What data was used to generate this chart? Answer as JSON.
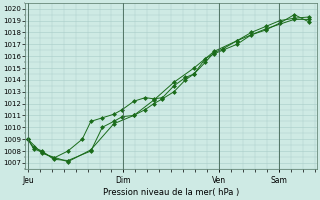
{
  "xlabel": "Pression niveau de la mer( hPa )",
  "ylim": [
    1006.5,
    1020.5
  ],
  "yticks": [
    1007,
    1008,
    1009,
    1010,
    1011,
    1012,
    1013,
    1014,
    1015,
    1016,
    1017,
    1018,
    1019,
    1020
  ],
  "background_color": "#ceeae4",
  "grid_color": "#a8ccc8",
  "line_color": "#1a6b1a",
  "xtick_labels": [
    "Jeu",
    "Dim",
    "Ven",
    "Sam"
  ],
  "xtick_positions": [
    0.0,
    0.333,
    0.667,
    0.875
  ],
  "vline_positions": [
    0.0,
    0.333,
    0.667,
    0.875
  ],
  "series1_x": [
    0.0,
    0.02,
    0.05,
    0.09,
    0.14,
    0.19,
    0.22,
    0.26,
    0.3,
    0.33,
    0.37,
    0.41,
    0.44,
    0.47,
    0.51,
    0.55,
    0.58,
    0.62,
    0.65,
    0.68,
    0.73,
    0.78,
    0.83,
    0.88,
    0.93,
    0.98
  ],
  "series1_y": [
    1009.0,
    1008.2,
    1007.9,
    1007.4,
    1008.0,
    1009.0,
    1010.5,
    1010.8,
    1011.1,
    1011.5,
    1012.2,
    1012.5,
    1012.4,
    1012.5,
    1013.5,
    1014.2,
    1014.5,
    1015.5,
    1016.3,
    1016.6,
    1017.3,
    1018.0,
    1018.5,
    1019.0,
    1019.2,
    1019.3
  ],
  "series2_x": [
    0.0,
    0.02,
    0.05,
    0.09,
    0.14,
    0.22,
    0.26,
    0.3,
    0.33,
    0.37,
    0.41,
    0.44,
    0.47,
    0.51,
    0.55,
    0.58,
    0.62,
    0.65,
    0.68,
    0.73,
    0.78,
    0.83,
    0.88,
    0.93,
    0.98
  ],
  "series2_y": [
    1009.0,
    1008.3,
    1008.0,
    1007.3,
    1007.2,
    1008.0,
    1010.0,
    1010.5,
    1010.9,
    1011.0,
    1011.5,
    1012.0,
    1012.4,
    1013.0,
    1014.0,
    1014.5,
    1015.8,
    1016.2,
    1016.5,
    1017.0,
    1017.8,
    1018.2,
    1018.8,
    1019.5,
    1018.9
  ],
  "series3_x": [
    0.0,
    0.05,
    0.14,
    0.22,
    0.3,
    0.37,
    0.44,
    0.51,
    0.58,
    0.65,
    0.73,
    0.83,
    0.93,
    0.98
  ],
  "series3_y": [
    1009.0,
    1007.8,
    1007.1,
    1008.1,
    1010.3,
    1011.0,
    1012.3,
    1013.8,
    1015.0,
    1016.4,
    1017.3,
    1018.3,
    1019.1,
    1019.1
  ]
}
